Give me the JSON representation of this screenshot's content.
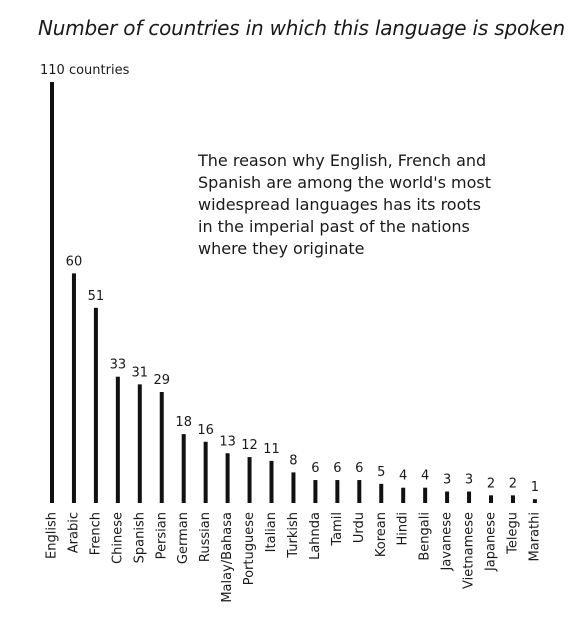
{
  "chart_data": {
    "type": "bar",
    "title": "Number of countries in which this language is spoken",
    "annotation": "The reason why English, French and Spanish are among the world's most widespread languages has its roots in the imperial past of the nations where they originate",
    "top_label_suffix": " countries",
    "categories": [
      "English",
      "Arabic",
      "French",
      "Chinese",
      "Spanish",
      "Persian",
      "German",
      "Russian",
      "Malay/Bahasa",
      "Portuguese",
      "Italian",
      "Turkish",
      "Lahnda",
      "Tamil",
      "Urdu",
      "Korean",
      "Hindi",
      "Bengali",
      "Javanese",
      "Vietnamese",
      "Japanese",
      "Telegu",
      "Marathi"
    ],
    "values": [
      110,
      60,
      51,
      33,
      31,
      29,
      18,
      16,
      13,
      12,
      11,
      8,
      6,
      6,
      6,
      5,
      4,
      4,
      3,
      3,
      2,
      2,
      1
    ],
    "xlabel": "",
    "ylabel": "",
    "ylim": [
      0,
      110
    ],
    "grid": false,
    "bar_color": "#111111"
  }
}
